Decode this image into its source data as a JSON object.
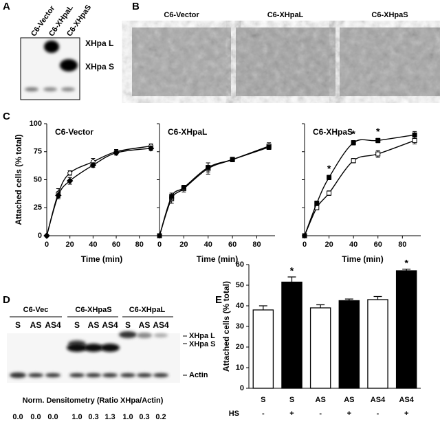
{
  "panel_labels": [
    "A",
    "B",
    "C",
    "D",
    "E"
  ],
  "blot_a": {
    "lane_labels": [
      "C6-Vector",
      "C6-XHpaL",
      "C6-XHpaS"
    ],
    "band_labels": [
      "XHpa L",
      "XHpa S"
    ]
  },
  "micrographs": {
    "titles": [
      "C6-Vector",
      "C6-XHpaL",
      "C6-XHpaS"
    ]
  },
  "blot_d": {
    "groups": [
      "C6-Vec",
      "C6-XHpaS",
      "C6-XHpaL"
    ],
    "lanes": [
      "S",
      "AS",
      "AS4",
      "S",
      "AS",
      "AS4",
      "S",
      "AS",
      "AS4"
    ],
    "band_labels": [
      "XHpa L",
      "XHpa S",
      "Actin"
    ],
    "densitometry_title": "Norm. Densitometry (Ratio XHpa/Actin)",
    "densitometry": [
      "0.0",
      "0.0",
      "0.0",
      "1.0",
      "0.3",
      "1.3",
      "1.0",
      "0.3",
      "0.2"
    ]
  },
  "chart_data": [
    {
      "type": "line",
      "title": "C6-Vector",
      "x": [
        0,
        10,
        20,
        40,
        60,
        90
      ],
      "series": [
        {
          "color": "#000000",
          "marker": "open-circle",
          "values": [
            0,
            38,
            56,
            66,
            75,
            80
          ],
          "errors": [
            0,
            4,
            2,
            3,
            2,
            2
          ]
        },
        {
          "color": "#000000",
          "marker": "filled-diamond",
          "values": [
            0,
            36,
            49,
            63,
            74,
            78
          ],
          "errors": [
            0,
            3,
            3,
            2,
            2,
            2
          ]
        }
      ],
      "xlim": [
        0,
        95
      ],
      "ylim": [
        0,
        100
      ],
      "xticks": [
        0,
        20,
        40,
        60,
        80
      ],
      "yticks": [
        0,
        25,
        50,
        75,
        100
      ],
      "ytick_labels": true,
      "xlabel": "Time (min)",
      "ylabel": "Attached cells (% total)"
    },
    {
      "type": "line",
      "title": "C6-XHpaL",
      "x": [
        0,
        10,
        20,
        40,
        60,
        90
      ],
      "series": [
        {
          "color": "#000000",
          "marker": "open-square",
          "values": [
            0,
            33,
            42,
            60,
            68,
            80
          ],
          "errors": [
            0,
            4,
            3,
            5,
            2,
            3
          ]
        },
        {
          "color": "#000000",
          "marker": "filled-square",
          "values": [
            0,
            35,
            43,
            61,
            68,
            79
          ],
          "errors": [
            0,
            3,
            2,
            4,
            2,
            2
          ]
        }
      ],
      "xlim": [
        0,
        95
      ],
      "ylim": [
        0,
        100
      ],
      "xticks": [
        0,
        20,
        40,
        60,
        80
      ],
      "yticks": [
        0,
        25,
        50,
        75,
        100
      ],
      "ytick_labels": false,
      "xlabel": "Time (min)"
    },
    {
      "type": "line",
      "title": "C6-XHpaS",
      "x": [
        0,
        10,
        20,
        40,
        60,
        90
      ],
      "series": [
        {
          "color": "#000000",
          "marker": "open-square",
          "values": [
            0,
            25,
            38,
            67,
            73,
            85
          ],
          "errors": [
            0,
            2,
            2,
            2,
            3,
            3
          ]
        },
        {
          "color": "#000000",
          "marker": "filled-square",
          "values": [
            0,
            29,
            52,
            83,
            85,
            90
          ],
          "errors": [
            0,
            2,
            2,
            2,
            2,
            3
          ],
          "significance": [
            null,
            null,
            "*",
            "*",
            "*",
            null
          ]
        }
      ],
      "xlim": [
        0,
        95
      ],
      "ylim": [
        0,
        100
      ],
      "xticks": [
        0,
        20,
        40,
        60,
        80
      ],
      "yticks": [
        0,
        25,
        50,
        75,
        100
      ],
      "ytick_labels": false,
      "xlabel": "Time (min)"
    },
    {
      "type": "bar",
      "categories": [
        "S",
        "S",
        "AS",
        "AS",
        "AS4",
        "AS4"
      ],
      "group_label": "HS",
      "groups": [
        "-",
        "+",
        "-",
        "+",
        "-",
        "+"
      ],
      "values": [
        38,
        51.5,
        39,
        42.5,
        43,
        57
      ],
      "errors": [
        2,
        2.5,
        1.5,
        0.8,
        1.5,
        0.8
      ],
      "colors": [
        "#ffffff",
        "#000000",
        "#ffffff",
        "#000000",
        "#ffffff",
        "#000000"
      ],
      "significance": [
        null,
        "*",
        null,
        null,
        null,
        "*"
      ],
      "ylim": [
        0,
        60
      ],
      "yticks": [
        0,
        10,
        20,
        30,
        40,
        50,
        60
      ],
      "ylabel": "Attached cells (% total)"
    }
  ]
}
